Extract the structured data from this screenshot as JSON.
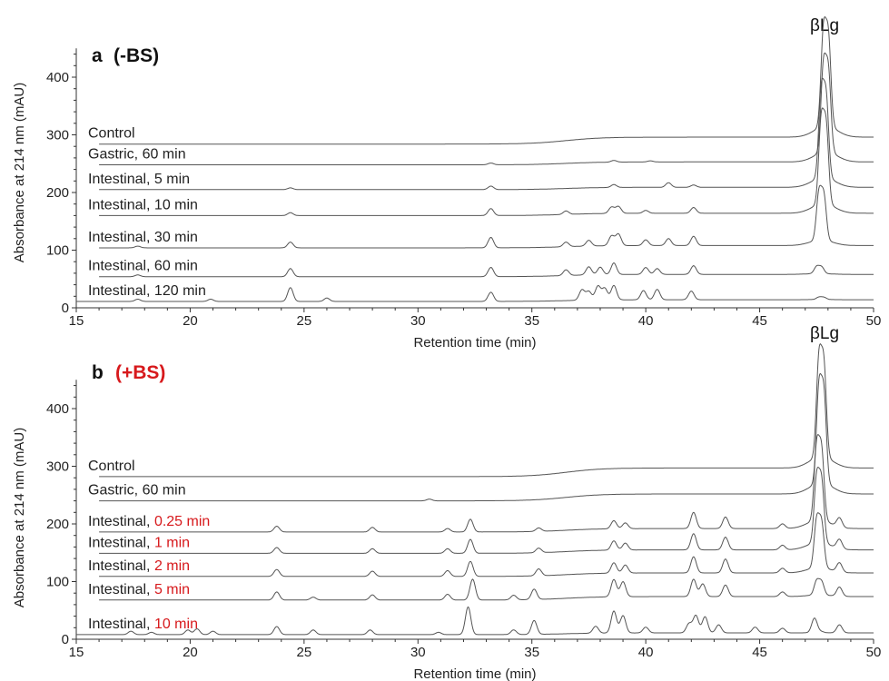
{
  "colors": {
    "trace": "#555555",
    "axis": "#333333",
    "text": "#222222",
    "highlight": "#d7191c"
  },
  "chart_data": [
    {
      "type": "line",
      "panel_letter": "a",
      "condition": "(-BS)",
      "condition_color": "#111111",
      "peak_label": "βLg",
      "xlabel": "Retention time (min)",
      "ylabel": "Absorbance at 214 nm (mAU)",
      "xlim": [
        15,
        50
      ],
      "ylim": [
        0,
        450
      ],
      "xticks": [
        15,
        20,
        25,
        30,
        35,
        40,
        45,
        50
      ],
      "yticks": [
        0,
        100,
        200,
        300,
        400
      ],
      "series": [
        {
          "name": "Control",
          "label_prefix": "Control",
          "label_highlight": "",
          "baseline": 284,
          "rise": 12,
          "minor": [],
          "peak": {
            "x": 47.8,
            "h": 160
          }
        },
        {
          "name": "Gastric, 60 min",
          "label_prefix": "Gastric, 60 min",
          "label_highlight": "",
          "baseline": 248,
          "rise": 5,
          "minor": [
            [
              33.2,
              3
            ],
            [
              38.6,
              3
            ],
            [
              40.2,
              2
            ]
          ],
          "peak": {
            "x": 47.8,
            "h": 145
          }
        },
        {
          "name": "Intestinal, 5 min",
          "label_prefix": "Intestinal, 5 min",
          "label_highlight": "",
          "baseline": 205,
          "rise": 4,
          "minor": [
            [
              24.4,
              3
            ],
            [
              33.2,
              6
            ],
            [
              38.6,
              5
            ],
            [
              41.0,
              8
            ],
            [
              42.1,
              4
            ]
          ],
          "peak": {
            "x": 47.7,
            "h": 145
          }
        },
        {
          "name": "Intestinal, 10 min",
          "label_prefix": "Intestinal, 10 min",
          "label_highlight": "",
          "baseline": 160,
          "rise": 4,
          "minor": [
            [
              24.4,
              5
            ],
            [
              33.2,
              12
            ],
            [
              36.5,
              6
            ],
            [
              38.5,
              11
            ],
            [
              38.8,
              12
            ],
            [
              40.0,
              5
            ],
            [
              42.1,
              10
            ]
          ],
          "peak": {
            "x": 47.7,
            "h": 140
          }
        },
        {
          "name": "Intestinal, 30 min",
          "label_prefix": "Intestinal, 30 min",
          "label_highlight": "",
          "baseline": 104,
          "rise": 4,
          "minor": [
            [
              17.7,
              3
            ],
            [
              24.4,
              10
            ],
            [
              33.2,
              18
            ],
            [
              36.5,
              8
            ],
            [
              37.5,
              10
            ],
            [
              38.5,
              17
            ],
            [
              38.8,
              20
            ],
            [
              40.0,
              10
            ],
            [
              41.0,
              12
            ],
            [
              42.1,
              16
            ]
          ],
          "peak": {
            "x": 47.6,
            "h": 80
          }
        },
        {
          "name": "Intestinal, 60 min",
          "label_prefix": "Intestinal, 60 min",
          "label_highlight": "",
          "baseline": 54,
          "rise": 4,
          "minor": [
            [
              17.7,
              3
            ],
            [
              24.4,
              14
            ],
            [
              33.2,
              16
            ],
            [
              36.5,
              10
            ],
            [
              37.5,
              14
            ],
            [
              38.0,
              13
            ],
            [
              38.6,
              20
            ],
            [
              40.0,
              12
            ],
            [
              40.5,
              10
            ],
            [
              42.1,
              15
            ]
          ],
          "peak": {
            "x": 47.5,
            "h": 12
          }
        },
        {
          "name": "Intestinal, 120 min",
          "label_prefix": "Intestinal, 120 min",
          "label_highlight": "",
          "baseline": 11,
          "rise": 3,
          "minor": [
            [
              17.7,
              4
            ],
            [
              20.9,
              4
            ],
            [
              24.4,
              24
            ],
            [
              26.0,
              6
            ],
            [
              33.2,
              16
            ],
            [
              37.2,
              18
            ],
            [
              37.5,
              15
            ],
            [
              37.9,
              24
            ],
            [
              38.2,
              20
            ],
            [
              38.6,
              25
            ],
            [
              39.9,
              16
            ],
            [
              40.5,
              18
            ],
            [
              42.0,
              15
            ]
          ],
          "peak": {
            "x": 47.6,
            "h": 4
          }
        }
      ]
    },
    {
      "type": "line",
      "panel_letter": "b",
      "condition": "(+BS)",
      "condition_color": "#d7191c",
      "peak_label": "βLg",
      "xlabel": "Retention time (min)",
      "ylabel": "Absorbance at 214 nm (mAU)",
      "xlim": [
        15,
        50
      ],
      "ylim": [
        0,
        450
      ],
      "xticks": [
        15,
        20,
        25,
        30,
        35,
        40,
        45,
        50
      ],
      "yticks": [
        0,
        100,
        200,
        300,
        400
      ],
      "series": [
        {
          "name": "Control",
          "label_prefix": "Control",
          "label_highlight": "",
          "baseline": 282,
          "rise": 15,
          "minor": [],
          "peak": {
            "x": 47.6,
            "h": 165
          }
        },
        {
          "name": "Gastric, 60 min",
          "label_prefix": "Gastric, 60 min",
          "label_highlight": "",
          "baseline": 240,
          "rise": 12,
          "minor": [
            [
              30.5,
              3
            ]
          ],
          "peak": {
            "x": 47.6,
            "h": 160
          }
        },
        {
          "name": "Intestinal, 0.25 min",
          "label_prefix": "Intestinal, ",
          "label_highlight": "0.25 min",
          "baseline": 186,
          "rise": 6,
          "minor": [
            [
              23.8,
              10
            ],
            [
              28.0,
              8
            ],
            [
              31.3,
              6
            ],
            [
              32.3,
              22
            ],
            [
              35.3,
              6
            ],
            [
              38.6,
              14
            ],
            [
              39.1,
              10
            ],
            [
              42.1,
              28
            ],
            [
              43.5,
              20
            ],
            [
              46.0,
              8
            ],
            [
              48.5,
              16
            ]
          ],
          "peak": {
            "x": 47.5,
            "h": 125
          }
        },
        {
          "name": "Intestinal, 1 min",
          "label_prefix": "Intestinal, ",
          "label_highlight": "1 min",
          "baseline": 149,
          "rise": 6,
          "minor": [
            [
              23.8,
              10
            ],
            [
              28.0,
              8
            ],
            [
              31.3,
              8
            ],
            [
              32.3,
              24
            ],
            [
              35.3,
              8
            ],
            [
              38.6,
              16
            ],
            [
              39.1,
              12
            ],
            [
              42.1,
              28
            ],
            [
              43.5,
              22
            ],
            [
              46.0,
              8
            ],
            [
              48.5,
              16
            ]
          ],
          "peak": {
            "x": 47.5,
            "h": 110
          }
        },
        {
          "name": "Intestinal, 2 min",
          "label_prefix": "Intestinal, ",
          "label_highlight": "2 min",
          "baseline": 109,
          "rise": 6,
          "minor": [
            [
              23.8,
              12
            ],
            [
              28.0,
              9
            ],
            [
              31.3,
              10
            ],
            [
              32.3,
              26
            ],
            [
              35.3,
              12
            ],
            [
              38.6,
              18
            ],
            [
              39.1,
              14
            ],
            [
              42.1,
              28
            ],
            [
              43.5,
              24
            ],
            [
              46.0,
              8
            ],
            [
              48.5,
              16
            ]
          ],
          "peak": {
            "x": 47.5,
            "h": 80
          }
        },
        {
          "name": "Intestinal, 5 min",
          "label_prefix": "Intestinal, ",
          "label_highlight": "5 min",
          "baseline": 68,
          "rise": 6,
          "minor": [
            [
              23.8,
              14
            ],
            [
              25.4,
              5
            ],
            [
              28.0,
              9
            ],
            [
              31.3,
              10
            ],
            [
              32.4,
              36
            ],
            [
              34.2,
              8
            ],
            [
              35.1,
              18
            ],
            [
              38.6,
              30
            ],
            [
              39.0,
              26
            ],
            [
              42.1,
              30
            ],
            [
              42.5,
              22
            ],
            [
              43.5,
              20
            ],
            [
              46.0,
              8
            ],
            [
              48.5,
              16
            ]
          ],
          "peak": {
            "x": 47.5,
            "h": 24
          }
        },
        {
          "name": "Intestinal, 10 min",
          "label_prefix": "Intestinal, ",
          "label_highlight": "10 min",
          "baseline": 8,
          "rise": 3,
          "minor": [
            [
              17.4,
              6
            ],
            [
              18.3,
              4
            ],
            [
              19.9,
              8
            ],
            [
              20.3,
              10
            ],
            [
              21.0,
              6
            ],
            [
              23.8,
              14
            ],
            [
              25.4,
              8
            ],
            [
              27.9,
              8
            ],
            [
              30.9,
              4
            ],
            [
              32.2,
              48
            ],
            [
              34.2,
              8
            ],
            [
              35.1,
              24
            ],
            [
              37.8,
              12
            ],
            [
              38.6,
              38
            ],
            [
              39.0,
              30
            ],
            [
              40.0,
              10
            ],
            [
              41.9,
              16
            ],
            [
              42.2,
              30
            ],
            [
              42.6,
              28
            ],
            [
              43.2,
              14
            ],
            [
              44.8,
              10
            ],
            [
              46.0,
              8
            ],
            [
              47.4,
              24
            ],
            [
              48.5,
              14
            ]
          ],
          "peak": {
            "x": 47.5,
            "h": 2
          }
        }
      ]
    }
  ]
}
